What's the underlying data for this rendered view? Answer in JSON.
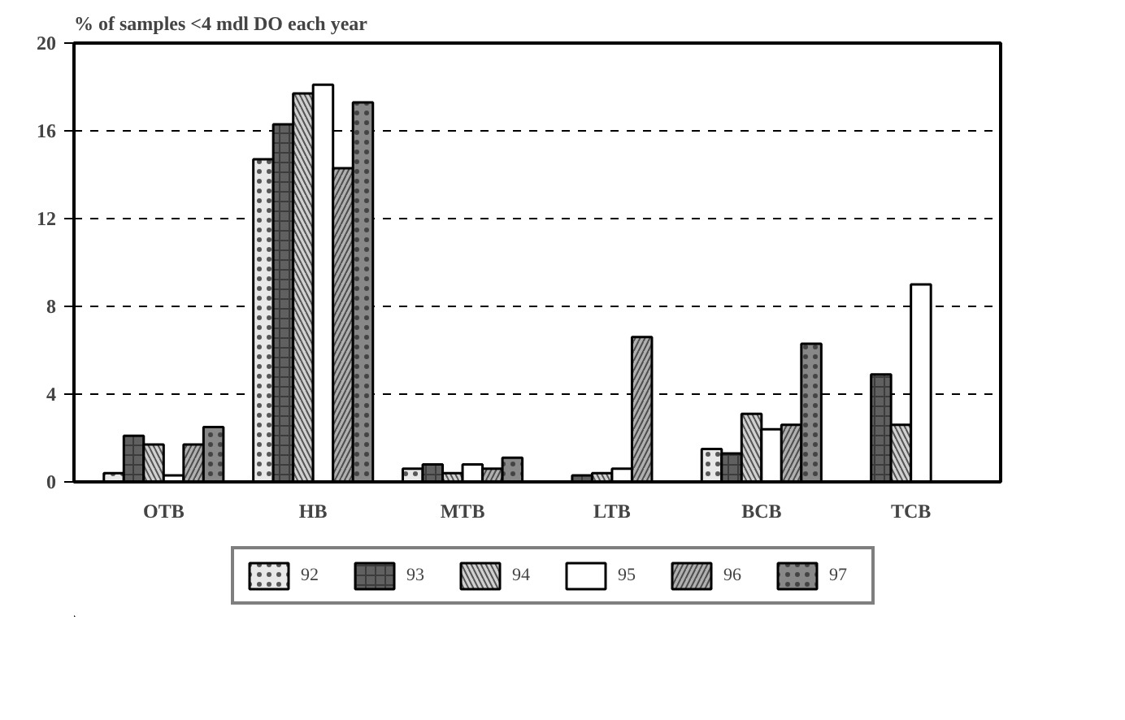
{
  "chart_data": {
    "type": "bar",
    "title": "% of samples <4 mdl DO each year",
    "categories": [
      "OTB",
      "HB",
      "MTB",
      "LTB",
      "BCB",
      "TCB"
    ],
    "series": [
      {
        "name": "92",
        "color": "#e8e8e8",
        "values": [
          0.4,
          14.7,
          0.6,
          null,
          1.5,
          null
        ]
      },
      {
        "name": "93",
        "color": "#606060",
        "values": [
          2.1,
          16.3,
          0.8,
          0.3,
          1.3,
          4.9
        ]
      },
      {
        "name": "94",
        "color": "#d0d0d0",
        "values": [
          1.7,
          17.7,
          0.4,
          0.4,
          3.1,
          2.6
        ]
      },
      {
        "name": "95",
        "color": "#ffffff",
        "values": [
          0.3,
          18.1,
          0.8,
          0.6,
          2.4,
          9.0
        ]
      },
      {
        "name": "96",
        "color": "#b0b0b0",
        "values": [
          1.7,
          14.3,
          0.6,
          6.6,
          2.6,
          null
        ]
      },
      {
        "name": "97",
        "color": "#888888",
        "values": [
          2.5,
          17.3,
          1.1,
          null,
          6.3,
          null
        ]
      }
    ],
    "ylim": [
      0,
      20
    ],
    "yticks": [
      0,
      4,
      8,
      12,
      16,
      20
    ],
    "grid": "y",
    "legend": "bottom"
  }
}
